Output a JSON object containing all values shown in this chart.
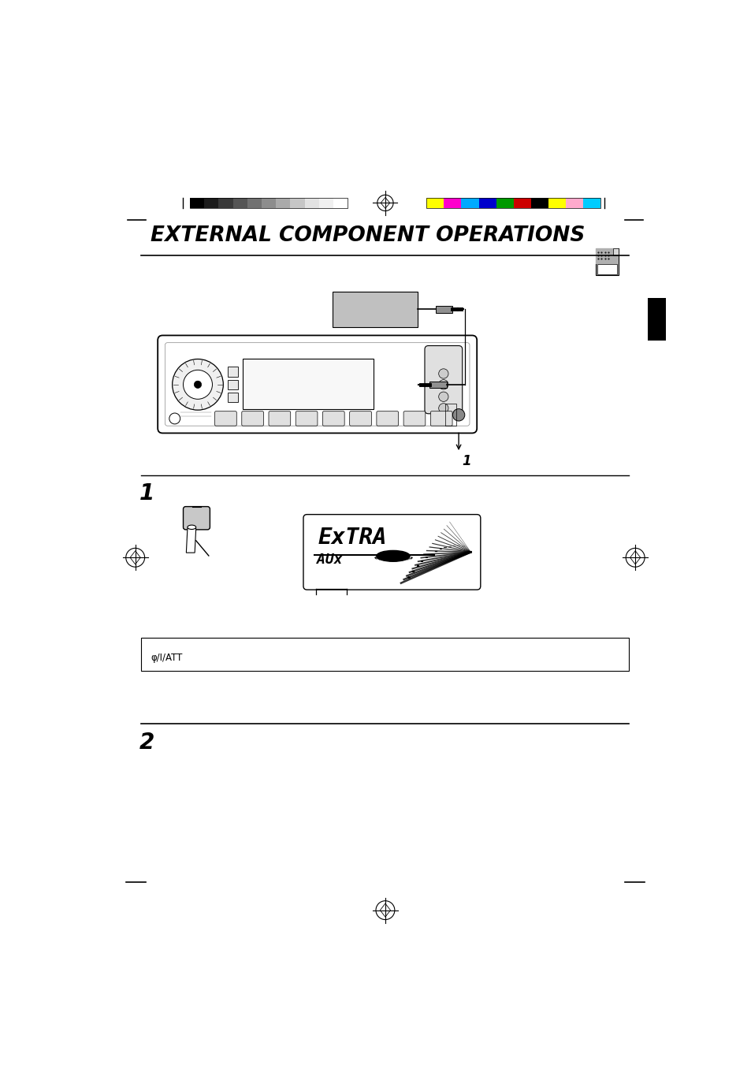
{
  "title": "EXTERNAL COMPONENT OPERATIONS",
  "background_color": "#ffffff",
  "page_width": 9.54,
  "page_height": 13.51,
  "color_bars_gray": [
    "#000000",
    "#1c1c1c",
    "#393939",
    "#555555",
    "#717171",
    "#8d8d8d",
    "#aaaaaa",
    "#c6c6c6",
    "#e2e2e2",
    "#f0f0f0",
    "#ffffff"
  ],
  "color_bars_color": [
    "#ffff00",
    "#ff00cc",
    "#00aaff",
    "#0000cc",
    "#009900",
    "#cc0000",
    "#000000",
    "#ffff00",
    "#ffaacc",
    "#00ccff"
  ],
  "step1_label": "1",
  "step2_label": "2",
  "note_label": "φ/I/ATT"
}
